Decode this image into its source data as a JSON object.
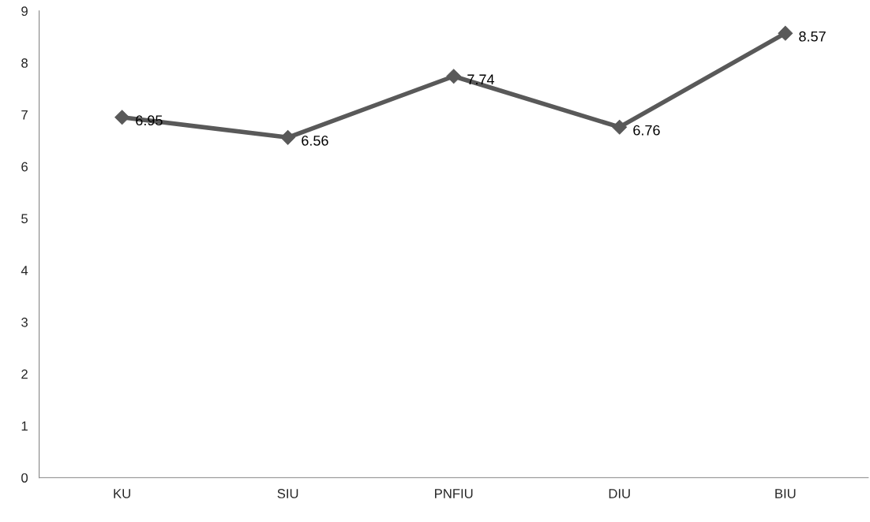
{
  "chart_data": {
    "type": "line",
    "categories": [
      "KU",
      "SIU",
      "PNFIU",
      "DIU",
      "BIU"
    ],
    "series": [
      {
        "color": "#595959",
        "values": [
          6.95,
          6.56,
          7.74,
          6.76,
          8.57
        ]
      }
    ],
    "ylim": [
      0,
      9
    ],
    "yticks": [
      0,
      1,
      2,
      3,
      4,
      5,
      6,
      7,
      8,
      9
    ],
    "grid": false,
    "legend": false,
    "marker": "diamond",
    "line_style": "solid",
    "data_labels": true
  }
}
